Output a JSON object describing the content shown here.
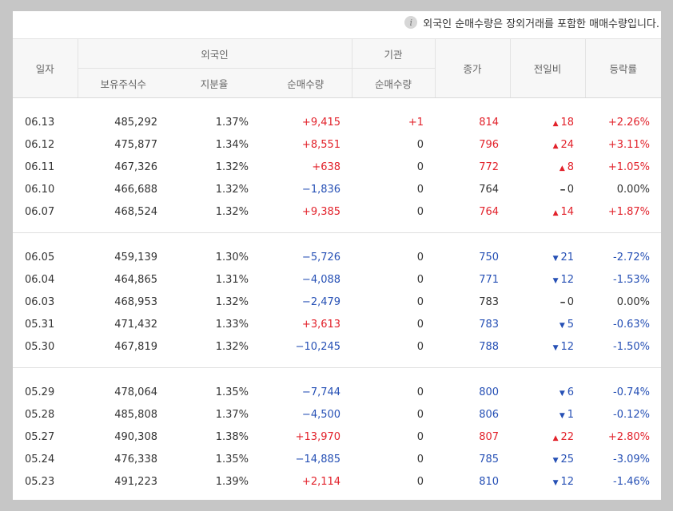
{
  "notice": "외국인 순매수량은 장외거래를 포함한 매매수량입니다.",
  "headers": {
    "date": "일자",
    "foreign": "외국인",
    "holdings": "보유주식수",
    "share": "지분율",
    "foreign_net": "순매수량",
    "institution": "기관",
    "inst_net": "순매수량",
    "close": "종가",
    "change": "전일비",
    "rate": "등락률"
  },
  "colors": {
    "up": "#e2222b",
    "down": "#2650b5",
    "flat": "#333333"
  },
  "groups": [
    [
      {
        "date": "06.13",
        "holdings": "485,292",
        "share": "1.37%",
        "fnet": "+9,415",
        "fdir": "up",
        "inet": "+1",
        "idir": "up",
        "close": "814",
        "cdir": "up",
        "change": "18",
        "chsym": "▲",
        "rate": "+2.26%"
      },
      {
        "date": "06.12",
        "holdings": "475,877",
        "share": "1.34%",
        "fnet": "+8,551",
        "fdir": "up",
        "inet": "0",
        "idir": "flat",
        "close": "796",
        "cdir": "up",
        "change": "24",
        "chsym": "▲",
        "rate": "+3.11%"
      },
      {
        "date": "06.11",
        "holdings": "467,326",
        "share": "1.32%",
        "fnet": "+638",
        "fdir": "up",
        "inet": "0",
        "idir": "flat",
        "close": "772",
        "cdir": "up",
        "change": "8",
        "chsym": "▲",
        "rate": "+1.05%"
      },
      {
        "date": "06.10",
        "holdings": "466,688",
        "share": "1.32%",
        "fnet": "−1,836",
        "fdir": "down",
        "inet": "0",
        "idir": "flat",
        "close": "764",
        "cdir": "flat",
        "change": "0",
        "chsym": "━",
        "rate": "0.00%"
      },
      {
        "date": "06.07",
        "holdings": "468,524",
        "share": "1.32%",
        "fnet": "+9,385",
        "fdir": "up",
        "inet": "0",
        "idir": "flat",
        "close": "764",
        "cdir": "up",
        "change": "14",
        "chsym": "▲",
        "rate": "+1.87%"
      }
    ],
    [
      {
        "date": "06.05",
        "holdings": "459,139",
        "share": "1.30%",
        "fnet": "−5,726",
        "fdir": "down",
        "inet": "0",
        "idir": "flat",
        "close": "750",
        "cdir": "down",
        "change": "21",
        "chsym": "▼",
        "rate": "-2.72%"
      },
      {
        "date": "06.04",
        "holdings": "464,865",
        "share": "1.31%",
        "fnet": "−4,088",
        "fdir": "down",
        "inet": "0",
        "idir": "flat",
        "close": "771",
        "cdir": "down",
        "change": "12",
        "chsym": "▼",
        "rate": "-1.53%"
      },
      {
        "date": "06.03",
        "holdings": "468,953",
        "share": "1.32%",
        "fnet": "−2,479",
        "fdir": "down",
        "inet": "0",
        "idir": "flat",
        "close": "783",
        "cdir": "flat",
        "change": "0",
        "chsym": "━",
        "rate": "0.00%"
      },
      {
        "date": "05.31",
        "holdings": "471,432",
        "share": "1.33%",
        "fnet": "+3,613",
        "fdir": "up",
        "inet": "0",
        "idir": "flat",
        "close": "783",
        "cdir": "down",
        "change": "5",
        "chsym": "▼",
        "rate": "-0.63%"
      },
      {
        "date": "05.30",
        "holdings": "467,819",
        "share": "1.32%",
        "fnet": "−10,245",
        "fdir": "down",
        "inet": "0",
        "idir": "flat",
        "close": "788",
        "cdir": "down",
        "change": "12",
        "chsym": "▼",
        "rate": "-1.50%"
      }
    ],
    [
      {
        "date": "05.29",
        "holdings": "478,064",
        "share": "1.35%",
        "fnet": "−7,744",
        "fdir": "down",
        "inet": "0",
        "idir": "flat",
        "close": "800",
        "cdir": "down",
        "change": "6",
        "chsym": "▼",
        "rate": "-0.74%"
      },
      {
        "date": "05.28",
        "holdings": "485,808",
        "share": "1.37%",
        "fnet": "−4,500",
        "fdir": "down",
        "inet": "0",
        "idir": "flat",
        "close": "806",
        "cdir": "down",
        "change": "1",
        "chsym": "▼",
        "rate": "-0.12%"
      },
      {
        "date": "05.27",
        "holdings": "490,308",
        "share": "1.38%",
        "fnet": "+13,970",
        "fdir": "up",
        "inet": "0",
        "idir": "flat",
        "close": "807",
        "cdir": "up",
        "change": "22",
        "chsym": "▲",
        "rate": "+2.80%"
      },
      {
        "date": "05.24",
        "holdings": "476,338",
        "share": "1.35%",
        "fnet": "−14,885",
        "fdir": "down",
        "inet": "0",
        "idir": "flat",
        "close": "785",
        "cdir": "down",
        "change": "25",
        "chsym": "▼",
        "rate": "-3.09%"
      },
      {
        "date": "05.23",
        "holdings": "491,223",
        "share": "1.39%",
        "fnet": "+2,114",
        "fdir": "up",
        "inet": "0",
        "idir": "flat",
        "close": "810",
        "cdir": "down",
        "change": "12",
        "chsym": "▼",
        "rate": "-1.46%"
      }
    ]
  ]
}
